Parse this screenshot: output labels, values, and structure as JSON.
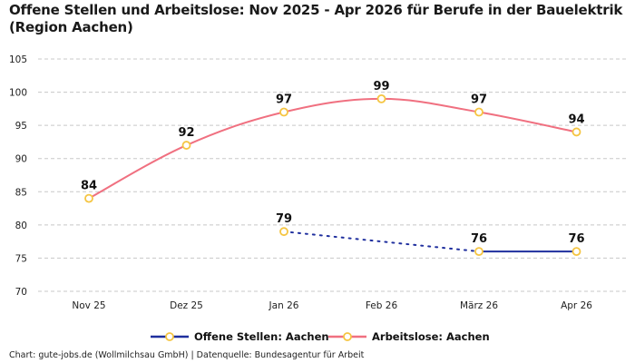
{
  "title": "Offene Stellen und Arbeitslose: Nov 2025 - Apr 2026 für Berufe in der Bauelektrik (Region Aachen)",
  "footer": "Chart: gute-jobs.de (Wollmilchsau GmbH) | Datenquelle: Bundesagentur für Arbeit",
  "chart_data": {
    "type": "line",
    "title": "Offene Stellen und Arbeitslose: Nov 2025 - Apr 2026 für Berufe in der Bauelektrik (Region Aachen)",
    "categories": [
      "Nov 25",
      "Dez 25",
      "Jan 26",
      "Feb 26",
      "März 26",
      "Apr 26"
    ],
    "ylim": [
      70,
      105
    ],
    "yticks": [
      70,
      75,
      80,
      85,
      90,
      95,
      100,
      105
    ],
    "grid": true,
    "legend_position": "bottom",
    "series": [
      {
        "name": "Offene Stellen: Aachen",
        "values": [
          null,
          null,
          79,
          null,
          76,
          76
        ],
        "color": "#1f2f9e",
        "marker_color": "#f5c542",
        "style": "solid",
        "gap_style": "dotted"
      },
      {
        "name": "Arbeitslose: Aachen",
        "values": [
          84,
          92,
          97,
          99,
          97,
          94
        ],
        "color": "#f07080",
        "marker_color": "#f5c542",
        "style": "smooth"
      }
    ]
  }
}
